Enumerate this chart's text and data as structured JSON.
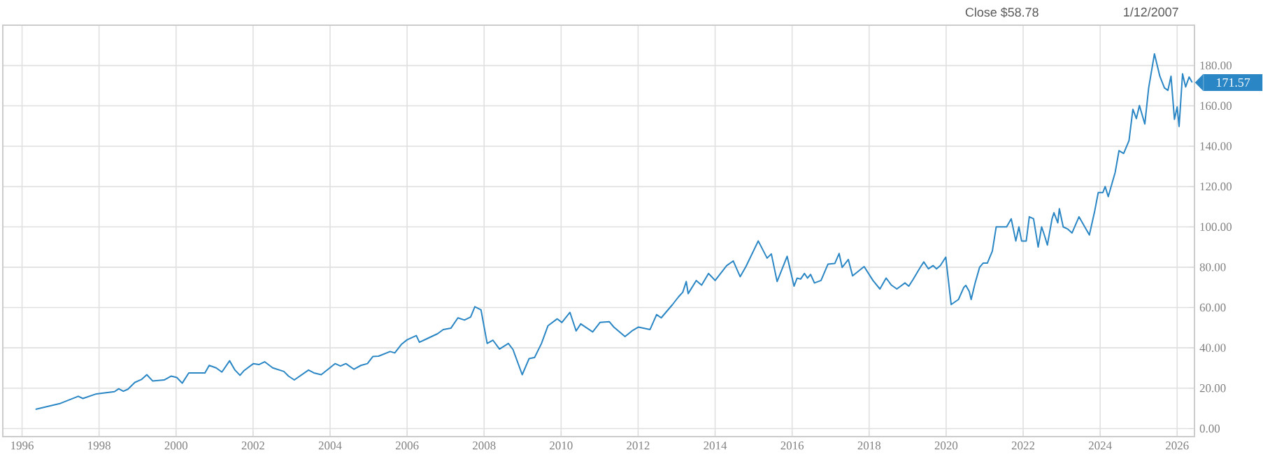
{
  "chart_data": {
    "type": "line",
    "annotations": [
      "Close $58.78",
      "1/12/2007",
      {
        "text": "171.57",
        "x": 2026.39,
        "y": 171.57
      }
    ],
    "x": [
      1996.35,
      1997.0,
      1997.46,
      1997.58,
      1997.93,
      1998.4,
      1998.51,
      1998.63,
      1998.75,
      1998.93,
      1999.1,
      1999.24,
      1999.39,
      1999.69,
      1999.87,
      2000.02,
      2000.16,
      2000.33,
      2000.75,
      2000.86,
      2001.04,
      2001.19,
      2001.39,
      2001.53,
      2001.66,
      2001.77,
      2002.01,
      2002.15,
      2002.3,
      2002.51,
      2002.8,
      2002.92,
      2003.07,
      2003.44,
      2003.58,
      2003.77,
      2004.13,
      2004.27,
      2004.41,
      2004.62,
      2004.8,
      2004.97,
      2005.11,
      2005.26,
      2005.56,
      2005.68,
      2005.85,
      2006.0,
      2006.24,
      2006.32,
      2006.5,
      2006.79,
      2006.94,
      2007.14,
      2007.32,
      2007.49,
      2007.65,
      2007.76,
      2007.92,
      2008.08,
      2008.23,
      2008.4,
      2008.63,
      2008.75,
      2008.99,
      2009.17,
      2009.31,
      2009.49,
      2009.66,
      2009.9,
      2010.02,
      2010.23,
      2010.39,
      2010.51,
      2010.82,
      2011.01,
      2011.25,
      2011.37,
      2011.66,
      2011.84,
      2012.01,
      2012.31,
      2012.48,
      2012.6,
      2012.89,
      2013.05,
      2013.16,
      2013.25,
      2013.3,
      2013.51,
      2013.65,
      2013.83,
      2014.0,
      2014.3,
      2014.47,
      2014.65,
      2014.8,
      2015.12,
      2015.35,
      2015.46,
      2015.61,
      2015.87,
      2016.05,
      2016.13,
      2016.22,
      2016.32,
      2016.4,
      2016.48,
      2016.58,
      2016.75,
      2016.93,
      2017.11,
      2017.22,
      2017.3,
      2017.46,
      2017.57,
      2017.87,
      2018.1,
      2018.28,
      2018.44,
      2018.58,
      2018.72,
      2018.93,
      2019.03,
      2019.14,
      2019.34,
      2019.42,
      2019.54,
      2019.66,
      2019.75,
      2019.85,
      2019.99,
      2020.13,
      2020.32,
      2020.46,
      2020.51,
      2020.6,
      2020.65,
      2020.75,
      2020.87,
      2020.96,
      2021.07,
      2021.2,
      2021.3,
      2021.57,
      2021.69,
      2021.81,
      2021.89,
      2021.96,
      2022.08,
      2022.16,
      2022.27,
      2022.39,
      2022.48,
      2022.55,
      2022.63,
      2022.75,
      2022.8,
      2022.9,
      2022.94,
      2023.04,
      2023.15,
      2023.27,
      2023.45,
      2023.6,
      2023.72,
      2023.86,
      2023.95,
      2024.07,
      2024.13,
      2024.21,
      2024.39,
      2024.49,
      2024.61,
      2024.75,
      2024.85,
      2024.94,
      2025.02,
      2025.16,
      2025.26,
      2025.41,
      2025.55,
      2025.67,
      2025.76,
      2025.84,
      2025.93,
      2026.0,
      2026.05,
      2026.14,
      2026.22,
      2026.31,
      2026.39
    ],
    "series": [
      {
        "color": "#2a86c4",
        "values": [
          9.5,
          12.5,
          16,
          14.9,
          17.2,
          18.3,
          19.7,
          18.5,
          19.5,
          22.9,
          24.3,
          26.7,
          23.6,
          24.1,
          26,
          25.3,
          22.5,
          27.6,
          27.6,
          31.3,
          30.1,
          28,
          33.6,
          29,
          26.4,
          28.8,
          32.2,
          31.7,
          33.1,
          30.1,
          28.3,
          26,
          24.1,
          29,
          27.6,
          26.7,
          32.2,
          31,
          32.2,
          29.4,
          31.3,
          32.2,
          35.7,
          35.9,
          38.2,
          37.5,
          41.7,
          44,
          46.1,
          42.8,
          44.4,
          47,
          49.1,
          49.8,
          54.9,
          53.8,
          55.3,
          60.4,
          58.8,
          42.2,
          43.8,
          39.4,
          42.2,
          39.2,
          26.7,
          34.7,
          35.2,
          42.2,
          51,
          54.4,
          52.6,
          57.6,
          48.4,
          51.9,
          47.9,
          52.6,
          53,
          50.3,
          45.6,
          48.4,
          50.3,
          49.1,
          56.5,
          54.9,
          61.4,
          65.3,
          67.6,
          72.9,
          66.9,
          73.4,
          71.1,
          76.9,
          73.4,
          80.8,
          83.1,
          75.3,
          80.3,
          93,
          84.5,
          86.6,
          72.9,
          85.4,
          70.6,
          74.6,
          74.1,
          76.9,
          74.6,
          76.4,
          72.2,
          73.4,
          81.5,
          81.9,
          86.8,
          79.9,
          83.8,
          75.7,
          80.3,
          73.4,
          69.2,
          74.6,
          71.1,
          69.2,
          72.2,
          70.6,
          73.9,
          80.3,
          82.6,
          79.2,
          80.8,
          79.2,
          80.8,
          85,
          61.5,
          64,
          70,
          71,
          68,
          64,
          72,
          80,
          82,
          82,
          88,
          100,
          100,
          104,
          93,
          100,
          93,
          93,
          105,
          104,
          90,
          100,
          96,
          91,
          104,
          107,
          102,
          109,
          100,
          99,
          97,
          105,
          100,
          96,
          108,
          117,
          117,
          120,
          115,
          127,
          137.8,
          136.4,
          142.8,
          158.3,
          153.7,
          160.2,
          151,
          168.9,
          185.8,
          174.7,
          168.9,
          167.7,
          174.7,
          153.3,
          159.5,
          149.8,
          175.9,
          169.4,
          174.3,
          171.6
        ]
      }
    ],
    "xlim": [
      1995.5,
      2026.45
    ],
    "xticks": [
      1996,
      1998,
      2000,
      2002,
      2004,
      2006,
      2008,
      2010,
      2012,
      2014,
      2016,
      2018,
      2020,
      2022,
      2024,
      2026
    ],
    "ylim": [
      -4,
      200
    ],
    "yticks": [
      {
        "value": 0,
        "label": "0.00"
      },
      {
        "value": 20,
        "label": "20.00"
      },
      {
        "value": 40,
        "label": "40.00"
      },
      {
        "value": 60,
        "label": "60.00"
      },
      {
        "value": 80,
        "label": "80.00"
      },
      {
        "value": 100,
        "label": "100.00"
      },
      {
        "value": 120,
        "label": "120.00"
      },
      {
        "value": 140,
        "label": "140.00"
      },
      {
        "value": 160,
        "label": "160.00"
      },
      {
        "value": 180,
        "label": "180.00"
      }
    ],
    "grid": true,
    "line_style": "solid"
  }
}
